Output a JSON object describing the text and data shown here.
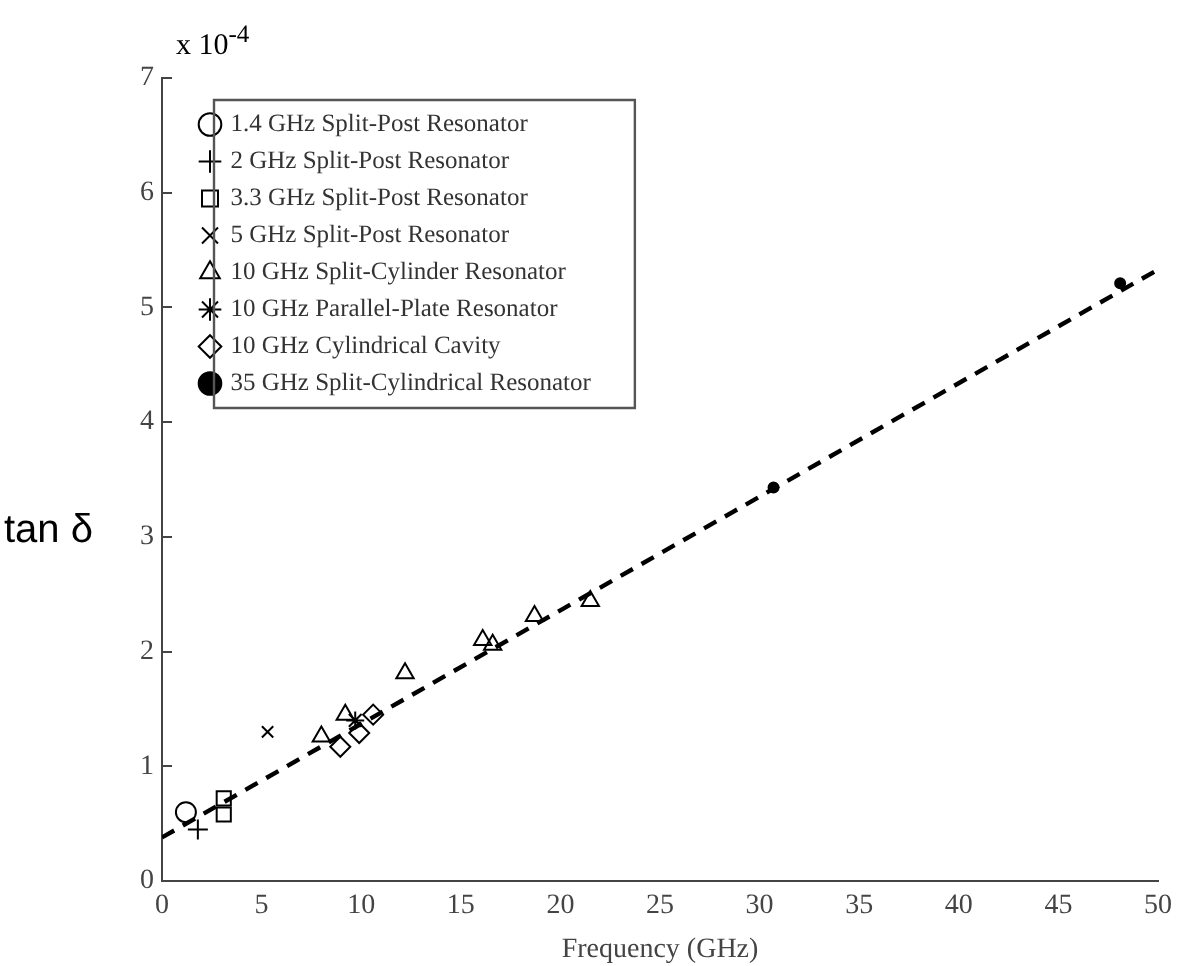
{
  "chart_data": {
    "type": "scatter",
    "xlabel": "Frequency (GHz)",
    "ylabel": "tan δ",
    "annotations": [
      "x 10$^{-4}$"
    ],
    "xlim": [
      0,
      50
    ],
    "xticks": [
      0,
      5,
      10,
      15,
      20,
      25,
      30,
      35,
      40,
      45,
      50
    ],
    "ylim": [
      0,
      7
    ],
    "yticks": [
      0,
      1,
      2,
      3,
      4,
      5,
      6,
      7
    ],
    "grid": false,
    "legend": "top left",
    "series": [
      {
        "name": "1.4 GHz Split-Post Resonator",
        "color": "#000000",
        "marker": "circle",
        "x": [
          1.2
        ],
        "values": [
          0.6
        ]
      },
      {
        "name": "2 GHz Split-Post Resonator",
        "color": "#000000",
        "marker": "plus",
        "x": [
          1.8
        ],
        "values": [
          0.45
        ]
      },
      {
        "name": "3.3 GHz Split-Post Resonator",
        "color": "#000000",
        "marker": "square",
        "x": [
          3.1,
          3.1
        ],
        "values": [
          0.72,
          0.58
        ]
      },
      {
        "name": "5 GHz Split-Post Resonator",
        "color": "#000000",
        "marker": "x",
        "x": [
          5.3
        ],
        "values": [
          1.3
        ]
      },
      {
        "name": "10 GHz Split-Cylinder Resonator",
        "color": "#000000",
        "marker": "triangle",
        "x": [
          8.0,
          9.2,
          12.2,
          16.1,
          16.6,
          18.7,
          21.5
        ],
        "values": [
          1.26,
          1.45,
          1.81,
          2.1,
          2.06,
          2.31,
          2.44
        ]
      },
      {
        "name": "10 GHz Parallel-Plate Resonator",
        "color": "#000000",
        "marker": "cross",
        "x": [
          9.7
        ],
        "values": [
          1.4
        ]
      },
      {
        "name": "10 GHz Cylindrical Cavity",
        "color": "#000000",
        "marker": "diamond",
        "x": [
          8.95,
          9.9,
          10.6
        ],
        "values": [
          1.17,
          1.29,
          1.45
        ]
      },
      {
        "name": "35 GHz Split-Cylindrical Resonator",
        "color": "#000000",
        "marker": "dot",
        "x": [
          30.7,
          48.1
        ],
        "values": [
          3.43,
          5.21
        ]
      },
      {
        "type": "line",
        "color": "#000000",
        "line_style": "dashed",
        "marker": "none",
        "x": [
          0,
          50
        ],
        "values": [
          0.38,
          5.33
        ]
      }
    ]
  }
}
